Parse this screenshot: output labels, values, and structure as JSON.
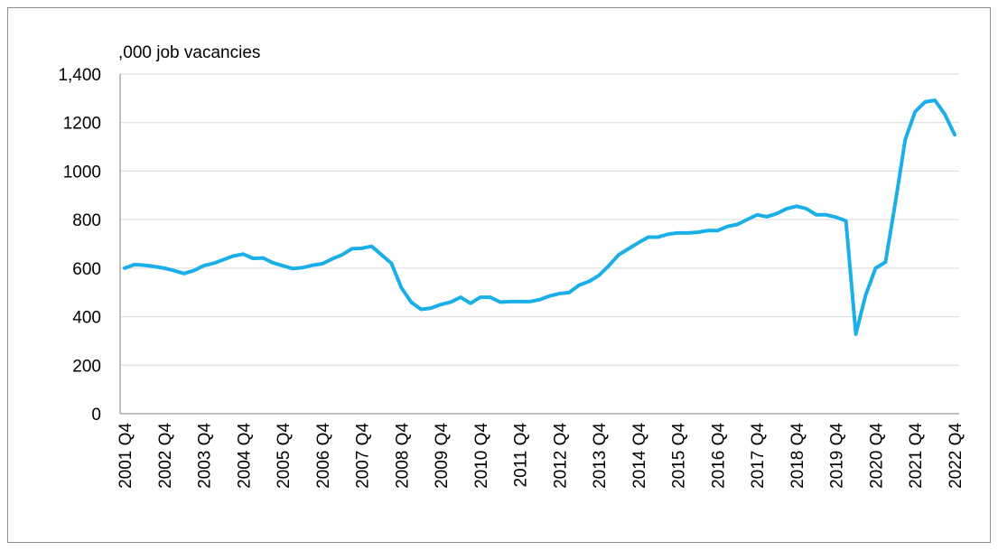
{
  "chart_data": {
    "type": "line",
    "y_axis_label": ",000 job vacancies",
    "categories": [
      "2001 Q4",
      null,
      null,
      null,
      "2002 Q4",
      null,
      null,
      null,
      "2003 Q4",
      null,
      null,
      null,
      "2004 Q4",
      null,
      null,
      null,
      "2005 Q4",
      null,
      null,
      null,
      "2006 Q4",
      null,
      null,
      null,
      "2007 Q4",
      null,
      null,
      null,
      "2008 Q4",
      null,
      null,
      null,
      "2009 Q4",
      null,
      null,
      null,
      "2010 Q4",
      null,
      null,
      null,
      "2011 Q4",
      null,
      null,
      null,
      "2012 Q4",
      null,
      null,
      null,
      "2013 Q4",
      null,
      null,
      null,
      "2014 Q4",
      null,
      null,
      null,
      "2015 Q4",
      null,
      null,
      null,
      "2016 Q4",
      null,
      null,
      null,
      "2017 Q4",
      null,
      null,
      null,
      "2018 Q4",
      null,
      null,
      null,
      "2019 Q4",
      null,
      null,
      null,
      "2020 Q4",
      null,
      null,
      null,
      "2021 Q4",
      null,
      null,
      null,
      "2022 Q4"
    ],
    "values": [
      600,
      615,
      612,
      607,
      600,
      590,
      578,
      590,
      610,
      620,
      635,
      650,
      658,
      640,
      642,
      622,
      610,
      598,
      602,
      612,
      618,
      638,
      655,
      680,
      682,
      690,
      655,
      620,
      520,
      460,
      430,
      435,
      450,
      460,
      480,
      455,
      480,
      480,
      460,
      462,
      462,
      462,
      470,
      485,
      495,
      500,
      530,
      545,
      570,
      610,
      655,
      680,
      705,
      728,
      728,
      740,
      745,
      745,
      748,
      755,
      755,
      772,
      780,
      800,
      820,
      812,
      825,
      845,
      855,
      845,
      820,
      820,
      810,
      795,
      328,
      490,
      600,
      625,
      870,
      1130,
      1245,
      1285,
      1292,
      1235,
      1150
    ],
    "color": "#1aafe8",
    "ylim": [
      0,
      1400
    ],
    "yticks": [
      0,
      200,
      400,
      600,
      800,
      1000,
      1200,
      {
        "value": 1400,
        "label": "1,400"
      }
    ],
    "grid": true
  }
}
